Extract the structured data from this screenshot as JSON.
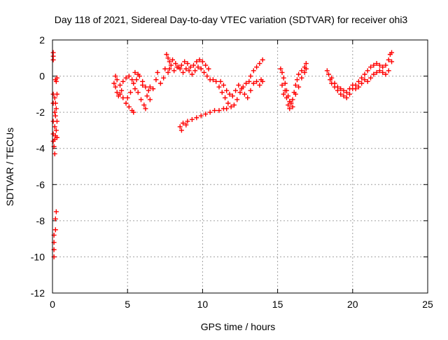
{
  "chart_data": {
    "type": "scatter",
    "title": "Day 118 of 2021, Sidereal Day-to-day VTEC variation (SDTVAR) for receiver ohi3",
    "xlabel": "GPS time / hours",
    "ylabel": "SDTVAR / TECUs",
    "xlim": [
      0,
      25
    ],
    "ylim": [
      -12,
      2
    ],
    "xticks": [
      0,
      5,
      10,
      15,
      20,
      25
    ],
    "yticks": [
      2,
      0,
      -2,
      -4,
      -6,
      -8,
      -10,
      -12
    ],
    "grid": true,
    "marker": "+",
    "color": "#ff0000",
    "series": [
      {
        "name": "SDTVAR",
        "points": [
          [
            0.05,
            1.3
          ],
          [
            0.05,
            1.1
          ],
          [
            0.05,
            0.9
          ],
          [
            0.05,
            -1.0
          ],
          [
            0.05,
            -1.5
          ],
          [
            0.05,
            -2.5
          ],
          [
            0.05,
            -3.2
          ],
          [
            0.05,
            -3.6
          ],
          [
            0.1,
            -8.8
          ],
          [
            0.1,
            -9.2
          ],
          [
            0.1,
            -9.6
          ],
          [
            0.1,
            -10.0
          ],
          [
            0.1,
            -3.9
          ],
          [
            0.15,
            -1.2
          ],
          [
            0.15,
            -2.0
          ],
          [
            0.15,
            -2.8
          ],
          [
            0.15,
            -3.5
          ],
          [
            0.15,
            -4.3
          ],
          [
            0.2,
            -0.2
          ],
          [
            0.2,
            -1.5
          ],
          [
            0.2,
            -2.2
          ],
          [
            0.2,
            -3.3
          ],
          [
            0.2,
            -7.9
          ],
          [
            0.2,
            -8.5
          ],
          [
            0.25,
            -0.3
          ],
          [
            0.25,
            -1.8
          ],
          [
            0.25,
            -3.0
          ],
          [
            0.25,
            -7.5
          ],
          [
            0.3,
            -0.1
          ],
          [
            0.3,
            -1.0
          ],
          [
            0.3,
            -2.5
          ],
          [
            0.3,
            -3.4
          ],
          [
            4.1,
            -0.4
          ],
          [
            4.2,
            -0.6
          ],
          [
            4.3,
            -0.9
          ],
          [
            4.4,
            -1.1
          ],
          [
            4.5,
            -1.0
          ],
          [
            4.6,
            -0.8
          ],
          [
            4.2,
            0.0
          ],
          [
            4.3,
            -0.2
          ],
          [
            4.7,
            -1.2
          ],
          [
            4.9,
            -1.5
          ],
          [
            5.1,
            -1.7
          ],
          [
            5.3,
            -1.9
          ],
          [
            5.4,
            -2.0
          ],
          [
            4.5,
            -0.5
          ],
          [
            4.7,
            -0.3
          ],
          [
            4.9,
            -0.1
          ],
          [
            5.1,
            0.0
          ],
          [
            5.3,
            -0.2
          ],
          [
            5.0,
            -1.2
          ],
          [
            5.2,
            -0.9
          ],
          [
            5.5,
            -0.7
          ],
          [
            5.7,
            -0.9
          ],
          [
            5.9,
            -1.3
          ],
          [
            6.1,
            -1.6
          ],
          [
            6.2,
            -1.8
          ],
          [
            5.4,
            -0.4
          ],
          [
            5.6,
            -0.2
          ],
          [
            5.8,
            0.0
          ],
          [
            6.0,
            -0.3
          ],
          [
            6.2,
            -0.6
          ],
          [
            6.4,
            -0.8
          ],
          [
            6.5,
            -0.6
          ],
          [
            5.5,
            0.2
          ],
          [
            5.7,
            0.1
          ],
          [
            6.0,
            -0.5
          ],
          [
            6.3,
            -1.1
          ],
          [
            6.5,
            -1.3
          ],
          [
            6.7,
            -0.7
          ],
          [
            6.9,
            -0.2
          ],
          [
            7.0,
            0.2
          ],
          [
            7.2,
            -0.4
          ],
          [
            7.4,
            -0.1
          ],
          [
            7.5,
            0.4
          ],
          [
            7.6,
            1.2
          ],
          [
            7.7,
            1.0
          ],
          [
            7.8,
            0.8
          ],
          [
            7.9,
            0.6
          ],
          [
            7.8,
            0.4
          ],
          [
            7.7,
            0.2
          ],
          [
            8.0,
            0.9
          ],
          [
            8.2,
            0.7
          ],
          [
            8.4,
            0.5
          ],
          [
            8.6,
            0.6
          ],
          [
            8.8,
            0.8
          ],
          [
            9.0,
            0.7
          ],
          [
            9.2,
            0.5
          ],
          [
            9.4,
            0.6
          ],
          [
            9.6,
            0.8
          ],
          [
            9.8,
            0.9
          ],
          [
            10.0,
            0.8
          ],
          [
            10.2,
            0.6
          ],
          [
            10.4,
            0.4
          ],
          [
            8.1,
            0.3
          ],
          [
            8.3,
            0.5
          ],
          [
            8.5,
            0.4
          ],
          [
            8.7,
            0.2
          ],
          [
            8.9,
            0.4
          ],
          [
            9.1,
            0.3
          ],
          [
            9.3,
            0.1
          ],
          [
            9.5,
            0.3
          ],
          [
            9.7,
            0.5
          ],
          [
            9.9,
            0.4
          ],
          [
            10.1,
            0.2
          ],
          [
            10.3,
            0.0
          ],
          [
            10.5,
            -0.2
          ],
          [
            10.7,
            -0.2
          ],
          [
            10.9,
            -0.3
          ],
          [
            11.1,
            -0.6
          ],
          [
            11.3,
            -0.9
          ],
          [
            11.5,
            -1.2
          ],
          [
            11.7,
            -1.5
          ],
          [
            11.9,
            -1.7
          ],
          [
            12.1,
            -1.6
          ],
          [
            12.3,
            -1.3
          ],
          [
            12.5,
            -0.9
          ],
          [
            12.7,
            -0.6
          ],
          [
            12.9,
            -0.4
          ],
          [
            13.1,
            -0.3
          ],
          [
            11.2,
            -0.3
          ],
          [
            11.4,
            -0.5
          ],
          [
            11.6,
            -0.8
          ],
          [
            11.8,
            -1.0
          ],
          [
            12.0,
            -1.1
          ],
          [
            12.2,
            -0.8
          ],
          [
            12.4,
            -0.5
          ],
          [
            12.6,
            -0.7
          ],
          [
            12.8,
            -1.0
          ],
          [
            13.0,
            -1.2
          ],
          [
            13.2,
            -0.8
          ],
          [
            13.4,
            -0.4
          ],
          [
            13.6,
            -0.3
          ],
          [
            13.8,
            -0.5
          ],
          [
            13.2,
            0.0
          ],
          [
            13.4,
            0.3
          ],
          [
            13.6,
            0.5
          ],
          [
            13.8,
            0.7
          ],
          [
            14.0,
            0.9
          ],
          [
            13.9,
            -0.2
          ],
          [
            14.0,
            -0.3
          ],
          [
            8.5,
            -2.8
          ],
          [
            8.7,
            -2.6
          ],
          [
            9.0,
            -2.5
          ],
          [
            9.3,
            -2.4
          ],
          [
            9.6,
            -2.3
          ],
          [
            9.9,
            -2.2
          ],
          [
            10.2,
            -2.1
          ],
          [
            10.5,
            -2.0
          ],
          [
            10.8,
            -1.9
          ],
          [
            11.1,
            -1.9
          ],
          [
            11.4,
            -1.8
          ],
          [
            11.6,
            -1.8
          ],
          [
            8.6,
            -3.0
          ],
          [
            8.9,
            -2.7
          ],
          [
            15.2,
            0.4
          ],
          [
            15.3,
            0.2
          ],
          [
            15.4,
            -0.1
          ],
          [
            15.5,
            -0.4
          ],
          [
            15.6,
            -0.8
          ],
          [
            15.7,
            -1.1
          ],
          [
            15.8,
            -1.4
          ],
          [
            15.9,
            -1.5
          ],
          [
            16.0,
            -1.3
          ],
          [
            16.1,
            -0.9
          ],
          [
            16.2,
            -0.5
          ],
          [
            16.3,
            -0.2
          ],
          [
            16.4,
            0.1
          ],
          [
            16.6,
            0.3
          ],
          [
            16.8,
            0.5
          ],
          [
            16.9,
            0.7
          ],
          [
            15.5,
            -0.8
          ],
          [
            15.6,
            -1.2
          ],
          [
            15.7,
            -1.6
          ],
          [
            15.8,
            -1.8
          ],
          [
            16.0,
            -1.7
          ],
          [
            16.2,
            -1.0
          ],
          [
            16.4,
            -0.6
          ],
          [
            16.6,
            -0.1
          ],
          [
            16.8,
            0.2
          ],
          [
            16.9,
            0.4
          ],
          [
            15.3,
            -0.5
          ],
          [
            15.4,
            -1.0
          ],
          [
            18.3,
            0.3
          ],
          [
            18.4,
            0.1
          ],
          [
            18.5,
            -0.2
          ],
          [
            18.6,
            -0.4
          ],
          [
            18.8,
            -0.6
          ],
          [
            19.0,
            -0.8
          ],
          [
            19.2,
            -1.0
          ],
          [
            19.4,
            -1.1
          ],
          [
            19.6,
            -1.2
          ],
          [
            19.8,
            -1.0
          ],
          [
            20.0,
            -0.7
          ],
          [
            20.2,
            -0.5
          ],
          [
            20.4,
            -0.3
          ],
          [
            20.6,
            -0.1
          ],
          [
            20.8,
            0.1
          ],
          [
            21.0,
            0.3
          ],
          [
            21.2,
            0.5
          ],
          [
            21.4,
            0.6
          ],
          [
            21.6,
            0.7
          ],
          [
            21.8,
            0.6
          ],
          [
            22.0,
            0.5
          ],
          [
            22.2,
            0.6
          ],
          [
            22.4,
            0.9
          ],
          [
            22.5,
            1.2
          ],
          [
            22.6,
            1.3
          ],
          [
            18.6,
            -0.1
          ],
          [
            18.8,
            -0.4
          ],
          [
            19.0,
            -0.6
          ],
          [
            19.2,
            -0.7
          ],
          [
            19.4,
            -0.8
          ],
          [
            19.6,
            -0.9
          ],
          [
            19.8,
            -0.7
          ],
          [
            20.0,
            -0.5
          ],
          [
            20.2,
            -0.7
          ],
          [
            20.4,
            -0.6
          ],
          [
            20.6,
            -0.4
          ],
          [
            20.8,
            -0.2
          ],
          [
            21.0,
            -0.3
          ],
          [
            21.2,
            -0.1
          ],
          [
            21.4,
            0.1
          ],
          [
            21.6,
            0.2
          ],
          [
            21.8,
            0.3
          ],
          [
            22.0,
            0.2
          ],
          [
            22.2,
            0.1
          ],
          [
            22.4,
            0.3
          ],
          [
            22.6,
            0.8
          ]
        ]
      }
    ]
  }
}
